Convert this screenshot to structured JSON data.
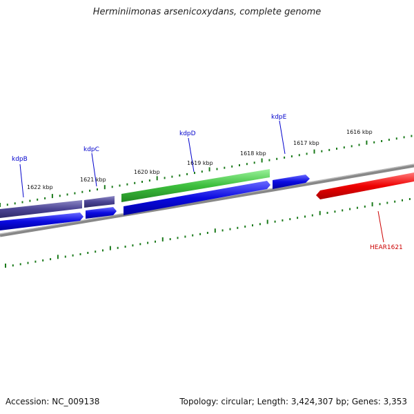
{
  "title": "Herminiimonas arsenicoxydans, complete genome",
  "footer": {
    "accession": "Accession: NC_009138",
    "summary": "Topology: circular; Length: 3,424,307 bp; Genes: 3,353"
  },
  "scale": {
    "tick_color": "#1a7a1a",
    "labels": [
      "1622 kbp",
      "1621 kbp",
      "1620 kbp",
      "1619 kbp",
      "1618 kbp",
      "1617 kbp",
      "1616 kbp"
    ]
  },
  "genes": [
    {
      "name": "kdpB",
      "color": "#0000cc",
      "label_color": "#0000cc"
    },
    {
      "name": "kdpC",
      "color": "#0000cc",
      "label_color": "#0000cc"
    },
    {
      "name": "kdpD",
      "color": "#0000cc",
      "label_color": "#0000cc"
    },
    {
      "name": "kdpE",
      "color": "#0000cc",
      "label_color": "#0000cc"
    },
    {
      "name": "HEAR1621",
      "color": "#ee0000",
      "label_color": "#cc0000"
    }
  ],
  "features": {
    "operon_colors": {
      "purple": "#4b4494",
      "green": "#3dbf3d",
      "blue": "#0a0ae0",
      "red": "#ee0000",
      "backbone": "#888888"
    }
  }
}
